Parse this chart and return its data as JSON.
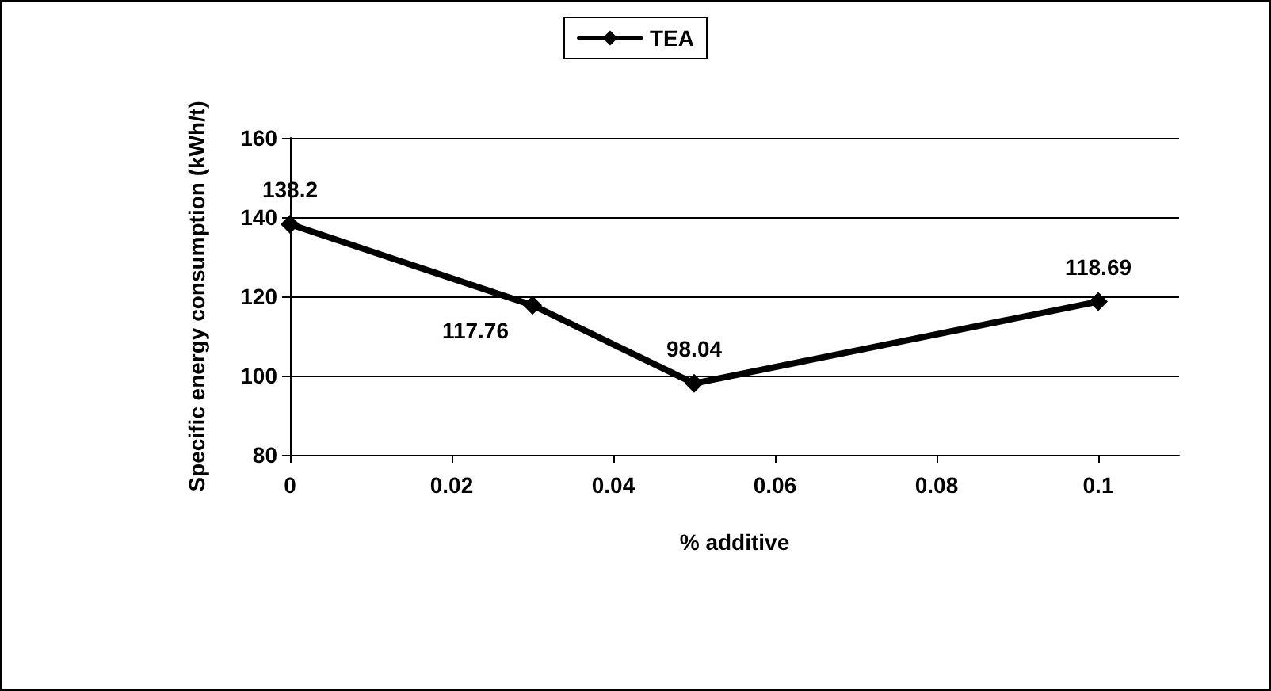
{
  "chart_data": {
    "type": "line",
    "xlabel": "% additive",
    "ylabel": "Specific energy consumption (kWh/t)",
    "x": [
      0,
      0.03,
      0.05,
      0.1
    ],
    "series": [
      {
        "name": "TEA",
        "color": "#000000",
        "values": [
          138.2,
          117.76,
          98.04,
          118.69
        ]
      }
    ],
    "xlim": [
      0,
      0.11
    ],
    "xticks": [
      0,
      0.02,
      0.04,
      0.06,
      0.08,
      0.1
    ],
    "ylim": [
      80,
      160
    ],
    "yticks": [
      80,
      100,
      120,
      140,
      160
    ],
    "grid": "y",
    "legend": "top",
    "marker": "diamond",
    "line_style": "solid",
    "data_labels": true
  }
}
